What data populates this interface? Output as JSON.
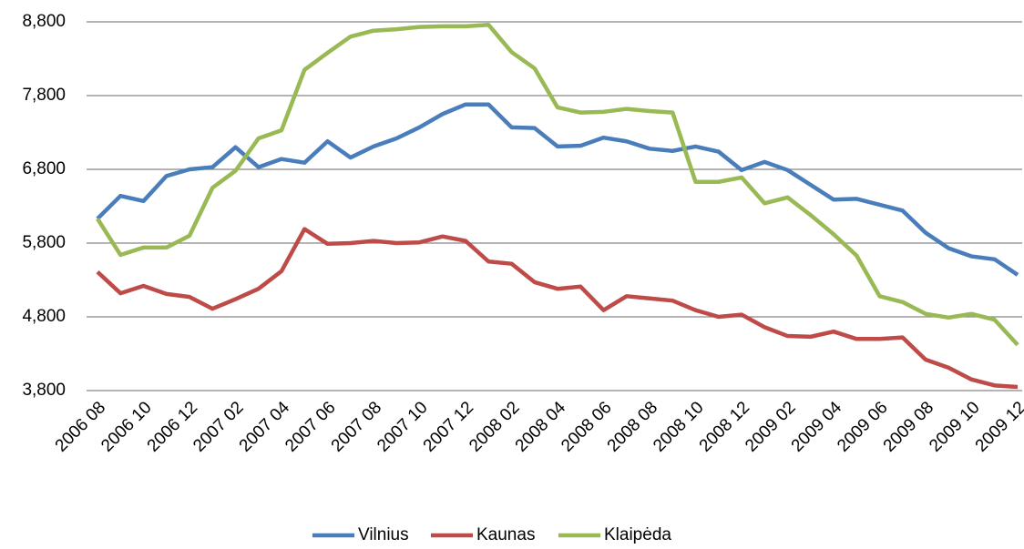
{
  "chart_data": {
    "type": "line",
    "categories": [
      "2006 08",
      null,
      "2006 10",
      null,
      "2006 12",
      null,
      "2007 02",
      null,
      "2007 04",
      null,
      "2007 06",
      null,
      "2007 08",
      null,
      "2007 10",
      null,
      "2007 12",
      null,
      "2008 02",
      null,
      "2008 04",
      null,
      "2008 06",
      null,
      "2008 08",
      null,
      "2008 10",
      null,
      "2008 12",
      null,
      "2009 02",
      null,
      "2009 04",
      null,
      "2009 06",
      null,
      "2009 08",
      null,
      "2009 10",
      null,
      "2009 12"
    ],
    "series": [
      {
        "name": "Vilnius",
        "color": "#4a7ebb",
        "values": [
          6130,
          6440,
          6370,
          6710,
          6800,
          6830,
          7100,
          6830,
          6940,
          6890,
          7180,
          6960,
          7110,
          7220,
          7370,
          7550,
          7680,
          7680,
          7370,
          7360,
          7110,
          7120,
          7230,
          7180,
          7080,
          7050,
          7110,
          7040,
          6790,
          6900,
          6790,
          6590,
          6390,
          6400,
          6320,
          6240,
          5940,
          5730,
          5620,
          5580,
          5370
        ]
      },
      {
        "name": "Kaunas",
        "color": "#be4b48",
        "values": [
          5410,
          5120,
          5220,
          5110,
          5070,
          4910,
          5040,
          5180,
          5420,
          5990,
          5790,
          5800,
          5830,
          5800,
          5810,
          5890,
          5830,
          5550,
          5520,
          5270,
          5180,
          5210,
          4890,
          5080,
          5050,
          5020,
          4890,
          4800,
          4830,
          4660,
          4540,
          4530,
          4600,
          4500,
          4500,
          4520,
          4220,
          4110,
          3950,
          3870,
          3850
        ]
      },
      {
        "name": "Klaipėda",
        "color": "#98b954",
        "values": [
          6130,
          5640,
          5740,
          5740,
          5900,
          6550,
          6780,
          7220,
          7330,
          8150,
          8380,
          8600,
          8680,
          8700,
          8730,
          8740,
          8740,
          8760,
          8390,
          8170,
          7640,
          7570,
          7580,
          7620,
          7590,
          7570,
          6630,
          6630,
          6690,
          6340,
          6420,
          6180,
          5920,
          5630,
          5080,
          5000,
          4840,
          4790,
          4840,
          4760,
          4420
        ]
      }
    ],
    "ylim": [
      3800,
      8800
    ],
    "yticks": [
      {
        "value": 3800,
        "label": "3,800"
      },
      {
        "value": 4800,
        "label": "4,800"
      },
      {
        "value": 5800,
        "label": "5,800"
      },
      {
        "value": 6800,
        "label": "6,800"
      },
      {
        "value": 7800,
        "label": "7,800"
      },
      {
        "value": 8800,
        "label": "8,800"
      }
    ],
    "grid": true,
    "legend": "bottom"
  }
}
